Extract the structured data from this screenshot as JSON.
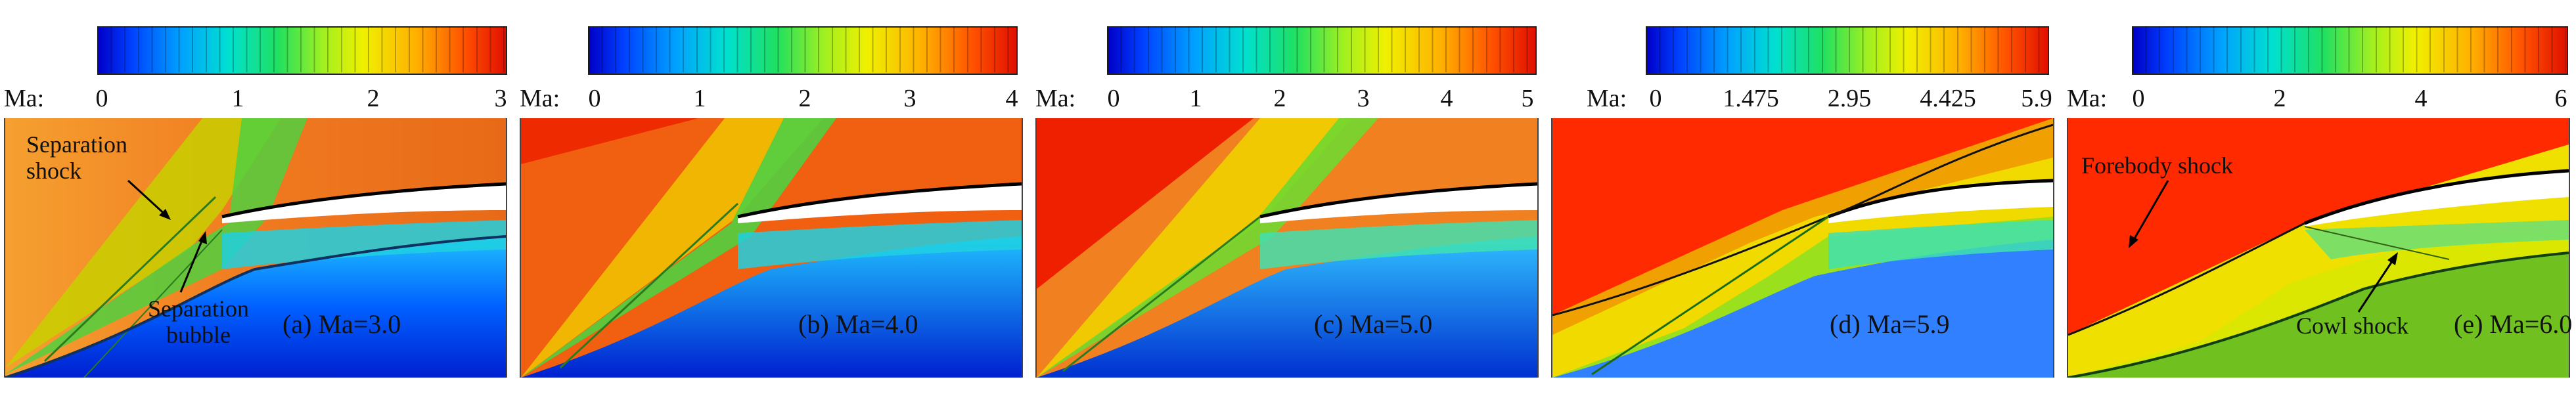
{
  "colorbar_label": "Ma:",
  "panels": [
    {
      "caption": "(a) Ma=3.0",
      "ticks": [
        "0",
        "1",
        "2",
        "3"
      ],
      "annotations": {
        "separation_shock": "Separation\nshock",
        "separation_bubble": "Separation\nbubble"
      }
    },
    {
      "caption": "(b) Ma=4.0",
      "ticks": [
        "0",
        "1",
        "2",
        "3",
        "4"
      ]
    },
    {
      "caption": "(c) Ma=5.0",
      "ticks": [
        "0",
        "1",
        "2",
        "3",
        "4",
        "5"
      ]
    },
    {
      "caption": "(d) Ma=5.9",
      "ticks": [
        "0",
        "1.475",
        "2.95",
        "4.425",
        "5.9"
      ]
    },
    {
      "caption": "(e) Ma=6.0",
      "ticks": [
        "0",
        "2",
        "4",
        "6"
      ],
      "annotations": {
        "forebody_shock": "Forebody shock",
        "cowl_shock": "Cowl shock"
      }
    }
  ],
  "colors": {
    "colormap": [
      "#0000c8",
      "#00a0ff",
      "#20e060",
      "#f0f000",
      "#ff5000",
      "#e01000"
    ],
    "freestream_a": "#f07a20",
    "freestream_b": "#f04a10",
    "freestream_hot": "#ff2a00"
  }
}
